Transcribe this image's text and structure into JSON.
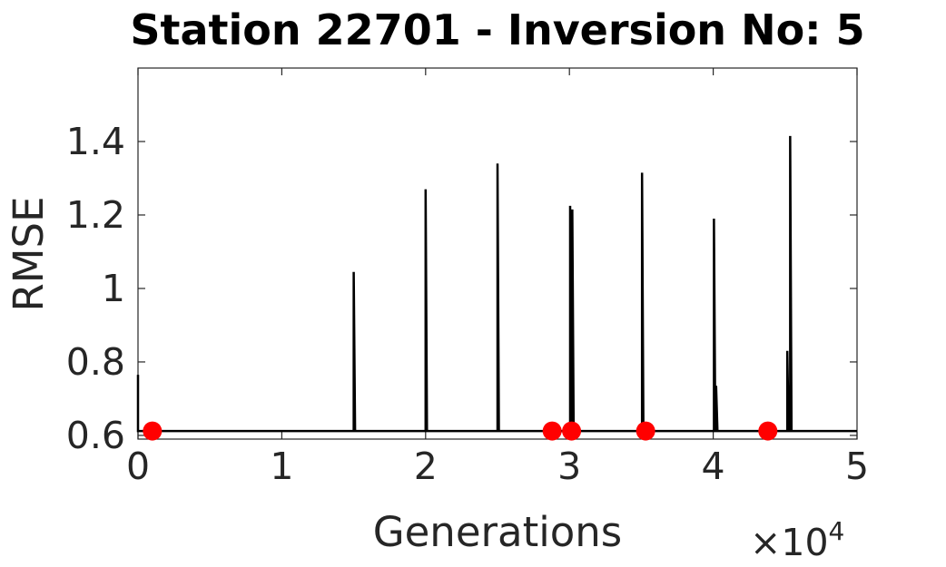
{
  "chart_data": {
    "type": "line",
    "title": "Station 22701 - Inversion No: 5",
    "xlabel": "Generations",
    "ylabel": "RMSE",
    "x_multiplier_label": "×10",
    "x_multiplier_exponent": "4",
    "xlim": [
      0,
      50000
    ],
    "ylim": [
      0.59,
      1.6
    ],
    "x_ticks": [
      0,
      10000,
      20000,
      30000,
      40000,
      50000
    ],
    "x_tick_labels": [
      "0",
      "1",
      "2",
      "3",
      "4",
      "5"
    ],
    "y_ticks": [
      0.6,
      0.8,
      1.0,
      1.2,
      1.4
    ],
    "y_tick_labels": [
      "0.6",
      "0.8",
      "1",
      "1.2",
      "1.4"
    ],
    "grid": false,
    "baseline": 0.612,
    "series": [
      {
        "color": "#000000",
        "spikes": [
          {
            "x": 0,
            "y": 0.765
          },
          {
            "x": 15000,
            "y": 1.045
          },
          {
            "x": 20000,
            "y": 1.27
          },
          {
            "x": 25000,
            "y": 1.34
          },
          {
            "x": 30050,
            "y": 1.225
          },
          {
            "x": 30200,
            "y": 1.215
          },
          {
            "x": 35050,
            "y": 1.315
          },
          {
            "x": 40050,
            "y": 1.19
          },
          {
            "x": 40200,
            "y": 0.735
          },
          {
            "x": 45150,
            "y": 0.83
          },
          {
            "x": 45350,
            "y": 1.415
          }
        ]
      },
      {
        "color": "#ff0000",
        "marker": "circle",
        "points": [
          {
            "x": 1000,
            "y": 0.612
          },
          {
            "x": 28800,
            "y": 0.612
          },
          {
            "x": 30150,
            "y": 0.612
          },
          {
            "x": 35300,
            "y": 0.612
          },
          {
            "x": 43800,
            "y": 0.612
          }
        ]
      }
    ]
  }
}
